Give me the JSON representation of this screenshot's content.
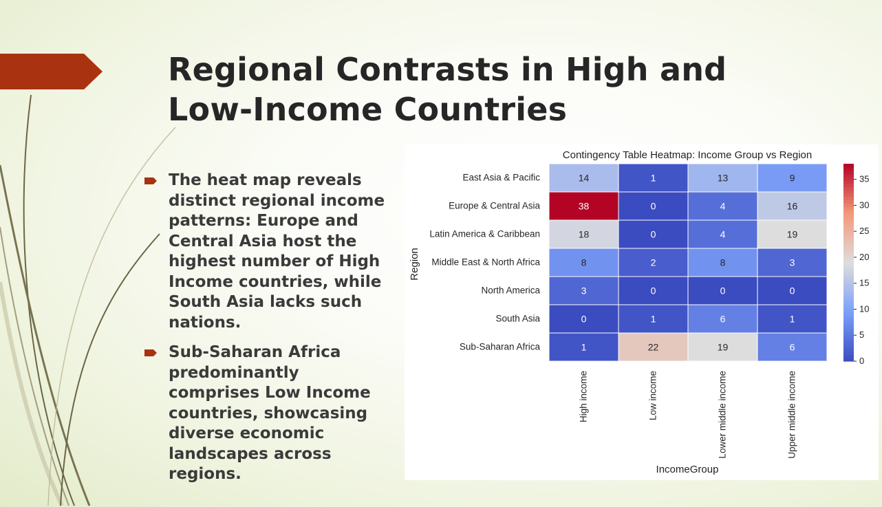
{
  "slide": {
    "title": "Regional Contrasts in High and Low-Income Countries",
    "accent_color": "#a93211",
    "bullets": [
      "The heat map reveals distinct regional income patterns: Europe and Central Asia host the highest number of High Income countries, while South Asia lacks such nations.",
      "Sub-Saharan Africa predominantly comprises Low Income countries, showcasing diverse economic landscapes across regions."
    ]
  },
  "chart_data": {
    "type": "heatmap",
    "title": "Contingency Table Heatmap: Income Group vs Region",
    "xlabel": "IncomeGroup",
    "ylabel": "Region",
    "x_categories": [
      "High income",
      "Low income",
      "Lower middle income",
      "Upper middle income"
    ],
    "y_categories": [
      "East Asia & Pacific",
      "Europe & Central Asia",
      "Latin America & Caribbean",
      "Middle East & North Africa",
      "North America",
      "South Asia",
      "Sub-Saharan Africa"
    ],
    "values": [
      [
        14,
        1,
        13,
        9
      ],
      [
        38,
        0,
        4,
        16
      ],
      [
        18,
        0,
        4,
        19
      ],
      [
        8,
        2,
        8,
        3
      ],
      [
        3,
        0,
        0,
        0
      ],
      [
        0,
        1,
        6,
        1
      ],
      [
        1,
        22,
        19,
        6
      ]
    ],
    "colormap": "coolwarm",
    "vmin": 0,
    "vmax": 38,
    "colorbar_ticks": [
      0,
      5,
      10,
      15,
      20,
      25,
      30,
      35
    ],
    "annotations": true
  }
}
